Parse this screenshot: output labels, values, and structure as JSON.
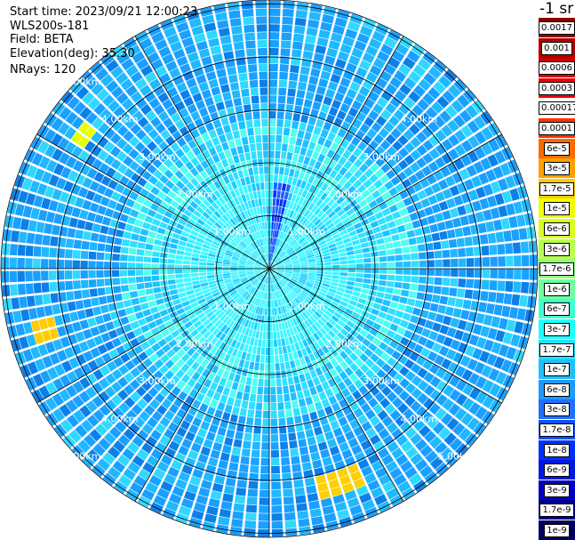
{
  "header": {
    "start_time": "Start time: 2023/09/21 12:00:23",
    "instrument": "WLS200s-181",
    "field": "Field: BETA",
    "elevation": "Elevation(deg): 35.30",
    "nrays": "NRays: 120"
  },
  "unit_label": "-1 sr",
  "ring_labels": [
    "1.00km",
    "2.00km",
    "3.00km",
    "4.00km",
    "5.00km"
  ],
  "colorbar": {
    "labels": [
      "0.0017",
      "0.001",
      "0.0006",
      "0.0003",
      "0.00017",
      "0.0001",
      "6e-5",
      "3e-5",
      "1.7e-5",
      "1e-5",
      "6e-6",
      "3e-6",
      "1.7e-6",
      "1e-6",
      "6e-7",
      "3e-7",
      "1.7e-7",
      "1e-7",
      "6e-8",
      "3e-8",
      "1.7e-8",
      "1e-8",
      "6e-9",
      "3e-9",
      "1.7e-9",
      "1e-9"
    ],
    "colors": [
      "#8c0000",
      "#b00000",
      "#d00000",
      "#f00000",
      "#ffffff",
      "#ff3000",
      "#ff6a00",
      "#ffa000",
      "#ffcc00",
      "#f0ff00",
      "#d8ff20",
      "#b8ff50",
      "#90ff80",
      "#70ffa0",
      "#40ffd0",
      "#20ffff",
      "#20e0ff",
      "#20c0ff",
      "#2098ff",
      "#2070ff",
      "#1050ff",
      "#0030ff",
      "#0018e0",
      "#0000c0",
      "#000090",
      "#000060"
    ]
  }
}
